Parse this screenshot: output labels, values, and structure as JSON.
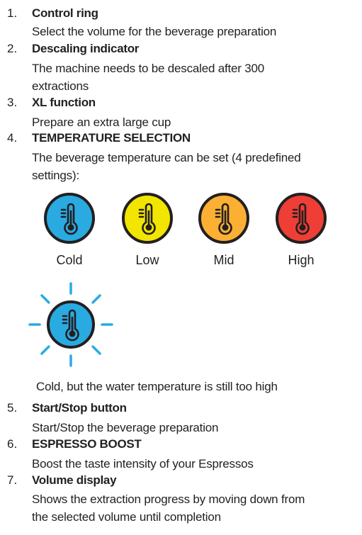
{
  "items": [
    {
      "number": "1.",
      "title": "Control ring",
      "description": [
        "Select the volume for the beverage preparation"
      ]
    },
    {
      "number": "2.",
      "title": "Descaling indicator",
      "description": [
        "The machine needs to be descaled after 300",
        "extractions"
      ]
    },
    {
      "number": "3.",
      "title": "XL function",
      "description": [
        "Prepare an extra large cup"
      ]
    },
    {
      "number": "4.",
      "title": "TEMPERATURE SELECTION",
      "description": [
        "The beverage temperature can be set (4 predefined",
        "settings):"
      ]
    },
    {
      "number": "5.",
      "title": "Start/Stop button",
      "description": [
        "Start/Stop the beverage preparation"
      ]
    },
    {
      "number": "6.",
      "title": "ESPRESSO BOOST",
      "description": [
        "Boost the taste intensity of your Espressos"
      ]
    },
    {
      "number": "7.",
      "title": "Volume display",
      "description": [
        "Shows the extraction progress by moving down from",
        "the selected volume until completion"
      ]
    }
  ],
  "temperatures": [
    {
      "label": "Cold",
      "color": "#29abe2",
      "icon": "thermometer-icon"
    },
    {
      "label": "Low",
      "color": "#f2e600",
      "icon": "thermometer-icon"
    },
    {
      "label": "Mid",
      "color": "#fbb034",
      "icon": "thermometer-icon"
    },
    {
      "label": "High",
      "color": "#ef3e36",
      "icon": "thermometer-icon"
    }
  ],
  "warning": {
    "icon": "thermometer-blinking-icon",
    "color": "#29abe2",
    "text": "Cold, but the water temperature is still too high"
  }
}
